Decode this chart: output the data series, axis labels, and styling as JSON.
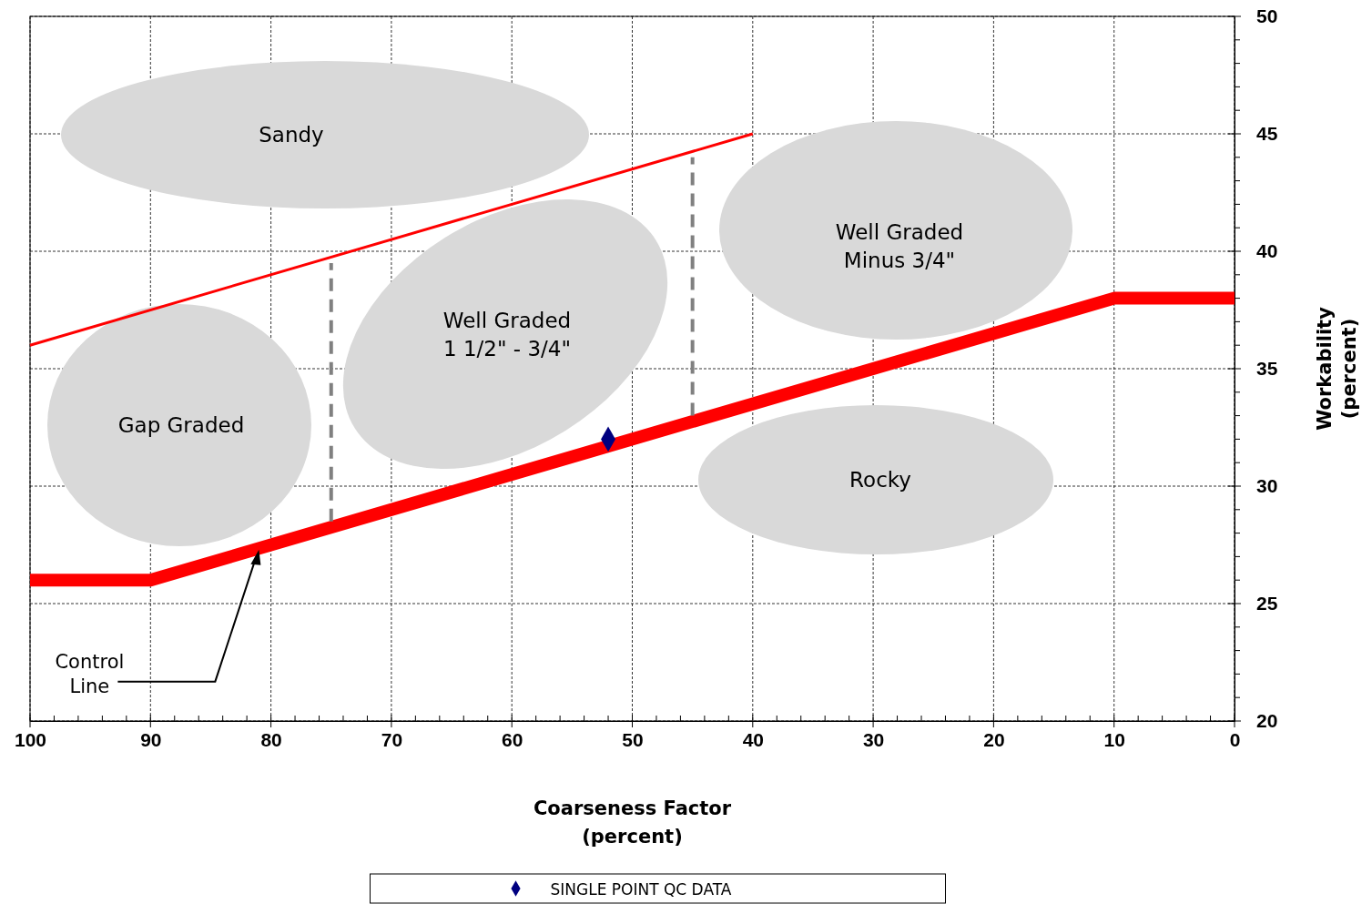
{
  "chart_data": {
    "type": "line",
    "xlabel": "Coarseness Factor\n(percent)",
    "ylabel": "Workability\n(percent)",
    "xlim": [
      100,
      0
    ],
    "ylim": [
      20,
      50
    ],
    "xticks": [
      100,
      {
        "value": 98,
        "label": null
      },
      {
        "value": 96,
        "label": null
      },
      {
        "value": 94,
        "label": null
      },
      {
        "value": 92,
        "label": null
      },
      90,
      {
        "value": 88,
        "label": null
      },
      {
        "value": 86,
        "label": null
      },
      {
        "value": 84,
        "label": null
      },
      {
        "value": 82,
        "label": null
      },
      80,
      {
        "value": 78,
        "label": null
      },
      {
        "value": 76,
        "label": null
      },
      {
        "value": 74,
        "label": null
      },
      {
        "value": 72,
        "label": null
      },
      70,
      {
        "value": 68,
        "label": null
      },
      {
        "value": 66,
        "label": null
      },
      {
        "value": 64,
        "label": null
      },
      {
        "value": 62,
        "label": null
      },
      60,
      {
        "value": 58,
        "label": null
      },
      {
        "value": 56,
        "label": null
      },
      {
        "value": 54,
        "label": null
      },
      {
        "value": 52,
        "label": null
      },
      50,
      {
        "value": 48,
        "label": null
      },
      {
        "value": 46,
        "label": null
      },
      {
        "value": 44,
        "label": null
      },
      {
        "value": 42,
        "label": null
      },
      40,
      {
        "value": 38,
        "label": null
      },
      {
        "value": 36,
        "label": null
      },
      {
        "value": 34,
        "label": null
      },
      {
        "value": 32,
        "label": null
      },
      30,
      {
        "value": 28,
        "label": null
      },
      {
        "value": 26,
        "label": null
      },
      {
        "value": 24,
        "label": null
      },
      {
        "value": 22,
        "label": null
      },
      20,
      {
        "value": 18,
        "label": null
      },
      {
        "value": 16,
        "label": null
      },
      {
        "value": 14,
        "label": null
      },
      {
        "value": 12,
        "label": null
      },
      10,
      {
        "value": 8,
        "label": null
      },
      {
        "value": 6,
        "label": null
      },
      {
        "value": 4,
        "label": null
      },
      {
        "value": 2,
        "label": null
      },
      0
    ],
    "yticks": [
      20,
      {
        "value": 21,
        "label": null
      },
      {
        "value": 22,
        "label": null
      },
      {
        "value": 23,
        "label": null
      },
      {
        "value": 24,
        "label": null
      },
      25,
      {
        "value": 26,
        "label": null
      },
      {
        "value": 27,
        "label": null
      },
      {
        "value": 28,
        "label": null
      },
      {
        "value": 29,
        "label": null
      },
      30,
      {
        "value": 31,
        "label": null
      },
      {
        "value": 32,
        "label": null
      },
      {
        "value": 33,
        "label": null
      },
      {
        "value": 34,
        "label": null
      },
      35,
      {
        "value": 36,
        "label": null
      },
      {
        "value": 37,
        "label": null
      },
      {
        "value": 38,
        "label": null
      },
      {
        "value": 39,
        "label": null
      },
      40,
      {
        "value": 41,
        "label": null
      },
      {
        "value": 42,
        "label": null
      },
      {
        "value": 43,
        "label": null
      },
      {
        "value": 44,
        "label": null
      },
      45,
      {
        "value": 46,
        "label": null
      },
      {
        "value": 47,
        "label": null
      },
      {
        "value": 48,
        "label": null
      },
      {
        "value": 49,
        "label": null
      },
      50
    ],
    "grid": true,
    "legend": "bottom",
    "series": [
      {
        "color": "#ff0000",
        "x": [
          100,
          90,
          10,
          0
        ],
        "values": [
          26,
          26,
          38,
          38
        ]
      },
      {
        "color": "#ff0000",
        "x": [
          100,
          40
        ],
        "values": [
          36,
          45
        ]
      },
      {
        "color": "#808080",
        "line_style": "dashed",
        "x": [
          75,
          75
        ],
        "values": [
          28.5,
          39.5
        ]
      },
      {
        "color": "#808080",
        "line_style": "dashed",
        "x": [
          45,
          45
        ],
        "values": [
          33,
          44
        ]
      },
      {
        "type": "scatter",
        "name": "SINGLE POINT QC DATA",
        "color": "#000080",
        "marker": "diamond",
        "x": [
          52
        ],
        "values": [
          32
        ]
      }
    ],
    "annotations": [
      "Sandy",
      "Well Graded\n1 1/2\" - 3/4\"",
      "Gap Graded",
      "Well Graded\nMinus 3/4\"",
      "Rocky",
      {
        "text": "Control\nLine",
        "x": 81,
        "y": 27.3
      }
    ]
  }
}
